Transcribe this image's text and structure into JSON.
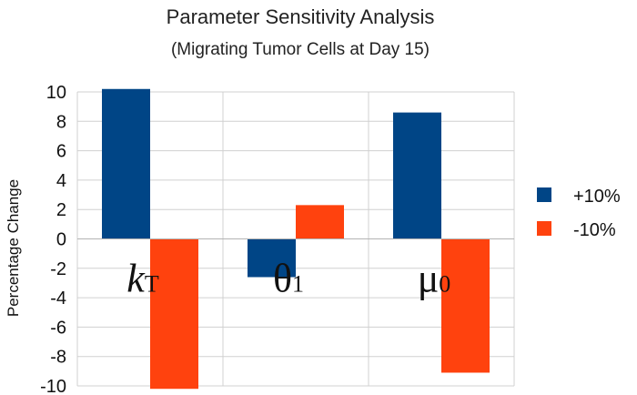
{
  "chart_data": {
    "type": "bar",
    "title": "Parameter Sensitivity Analysis",
    "subtitle": "(Migrating Tumor Cells at Day 15)",
    "xlabel": "",
    "ylabel": "Percentage Change",
    "ylim": [
      -10,
      10
    ],
    "yticks": [
      10,
      8,
      6,
      4,
      2,
      0,
      -2,
      -4,
      -6,
      -8,
      -10
    ],
    "grid": true,
    "legend_position": "right",
    "categories": [
      {
        "main": "k",
        "sub": "T",
        "italic": true
      },
      {
        "main": "θ",
        "sub": "1",
        "italic": false
      },
      {
        "main": "μ",
        "sub": "0",
        "italic": false
      }
    ],
    "series": [
      {
        "name": "+10%",
        "color": "#004586",
        "values": [
          10.2,
          -2.6,
          8.6
        ]
      },
      {
        "name": "-10%",
        "color": "#ff420e",
        "values": [
          -10.2,
          2.3,
          -9.1
        ]
      }
    ]
  }
}
